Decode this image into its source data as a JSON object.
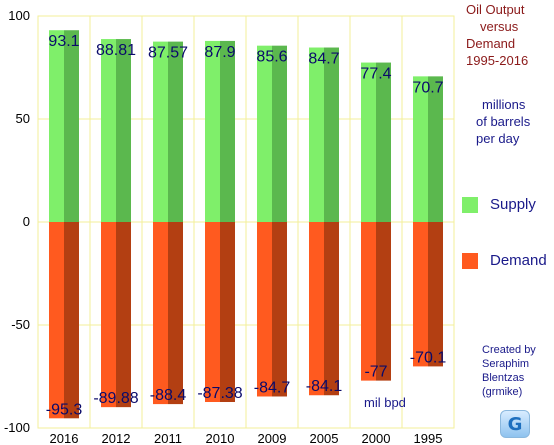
{
  "title_lines": [
    "Oil Output",
    "versus",
    "Demand",
    "1995-2016"
  ],
  "units_lines": [
    "millions",
    "of barrels",
    "per day"
  ],
  "legend": [
    {
      "label": "Supply",
      "color": "#7fef6a"
    },
    {
      "label": "Demand",
      "color": "#ff5a1f"
    }
  ],
  "credit_lines": [
    "Created by",
    "Seraphim",
    "Blentzas",
    "(grmike)"
  ],
  "unit_note": "mil bpd",
  "logo_glyph": "G",
  "chart_data": {
    "type": "bar",
    "categories": [
      "2016",
      "2012",
      "2011",
      "2010",
      "2009",
      "2005",
      "2000",
      "1995"
    ],
    "series": [
      {
        "name": "Supply",
        "values": [
          93.1,
          88.81,
          87.57,
          87.9,
          85.6,
          84.7,
          77.4,
          70.7
        ],
        "labels": [
          "93.1",
          "88.81",
          "87.57",
          "87.9",
          "85.6",
          "84.7",
          "77.4",
          "70.7"
        ],
        "color": "#7fef6a",
        "color_dark": "#5bb84e"
      },
      {
        "name": "Demand",
        "values": [
          -95.3,
          -89.88,
          -88.4,
          -87.38,
          -84.7,
          -84.1,
          -77,
          -70.1
        ],
        "labels": [
          "-95.3",
          "-89.88",
          "-88.4",
          "-87.38",
          "-84.7",
          "-84.1",
          "-77",
          "-70.1"
        ],
        "color": "#ff5a1f",
        "color_dark": "#b33f12"
      }
    ],
    "y_ticks": [
      100,
      50,
      0,
      -50,
      -100
    ],
    "ylim": [
      -100,
      100
    ],
    "grid": true,
    "stacked": true,
    "legend_position": "right"
  }
}
